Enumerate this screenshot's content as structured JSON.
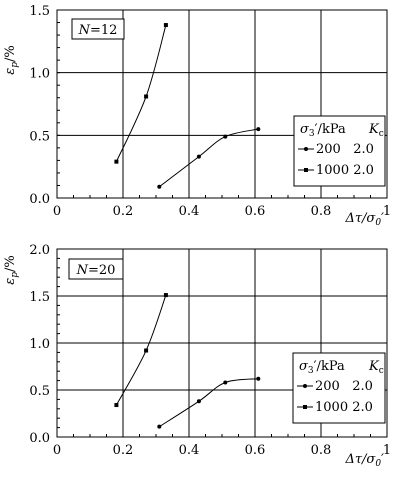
{
  "chart_data": [
    {
      "type": "line",
      "panel_label": "N=12",
      "xlabel": "Δτ/σ₀′",
      "ylabel": "εp/%",
      "xlim": [
        0,
        1
      ],
      "ylim": [
        0,
        1.5
      ],
      "xticks": [
        "0",
        "0.2",
        "0.4",
        "0.6",
        "0.8",
        "1"
      ],
      "yticks": [
        "0.0",
        "0.5",
        "1.0",
        "1.5"
      ],
      "grid": true,
      "legend": {
        "position": "right",
        "header_left": "σ3′/kPa",
        "header_right": "Kc",
        "entries": [
          "200   2.0",
          "1000 2.0"
        ]
      },
      "series": [
        {
          "marker": "dot",
          "x": [
            0.31,
            0.43,
            0.51,
            0.61
          ],
          "y": [
            0.09,
            0.33,
            0.49,
            0.55
          ]
        },
        {
          "marker": "square",
          "x": [
            0.18,
            0.27,
            0.33
          ],
          "y": [
            0.29,
            0.81,
            1.38
          ]
        }
      ]
    },
    {
      "type": "line",
      "panel_label": "N=20",
      "xlabel": "Δτ/σ₀′",
      "ylabel": "εp/%",
      "xlim": [
        0,
        1
      ],
      "ylim": [
        0,
        2.0
      ],
      "xticks": [
        "0",
        "0.2",
        "0.4",
        "0.6",
        "0.8",
        "1"
      ],
      "yticks": [
        "0.0",
        "0.5",
        "1.0",
        "1.5",
        "2.0"
      ],
      "grid": true,
      "legend": {
        "position": "right",
        "header_left": "σ3′/kPa",
        "header_right": "Kc",
        "entries": [
          "200   2.0",
          "1000 2.0"
        ]
      },
      "series": [
        {
          "marker": "dot",
          "x": [
            0.31,
            0.43,
            0.51,
            0.61
          ],
          "y": [
            0.11,
            0.38,
            0.58,
            0.62
          ]
        },
        {
          "marker": "square",
          "x": [
            0.18,
            0.27,
            0.33
          ],
          "y": [
            0.34,
            0.92,
            1.51
          ]
        }
      ]
    }
  ]
}
